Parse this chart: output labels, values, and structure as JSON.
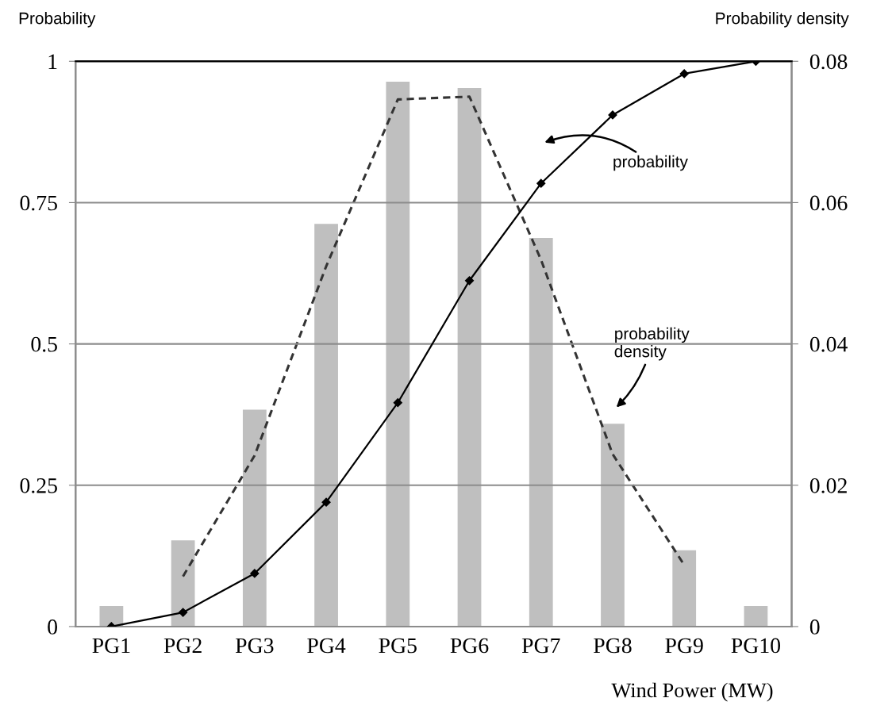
{
  "chart_data": {
    "type": "bar",
    "ylabel": "Probability",
    "y2label": "Probability density",
    "xlabel": "Wind Power (MW)",
    "categories": [
      "PG1",
      "PG2",
      "PG3",
      "PG4",
      "PG5",
      "PG6",
      "PG7",
      "PG8",
      "PG9",
      "PG10"
    ],
    "series": [
      {
        "axis": "y2",
        "color": "#bfbfbf",
        "values": [
          0.0029,
          0.0122,
          0.0307,
          0.057,
          0.0771,
          0.0762,
          0.055,
          0.0287,
          0.0108,
          0.0029
        ]
      },
      {
        "type": "line",
        "axis": "y2",
        "color": "#333333",
        "line_style": "dashed",
        "marker": "none",
        "values": [
          null,
          0.0071,
          0.0242,
          0.051,
          0.0746,
          0.075,
          0.0519,
          0.0244,
          0.0087,
          null
        ]
      },
      {
        "type": "line",
        "color": "#000000",
        "marker": "diamond",
        "line_style": "solid",
        "values": [
          0,
          0.025,
          0.094,
          0.22,
          0.396,
          0.612,
          0.784,
          0.905,
          0.978,
          1.0
        ]
      }
    ],
    "ylim": [
      0,
      1
    ],
    "yticks": [
      0,
      0.25,
      0.5,
      0.75,
      1
    ],
    "y2lim": [
      0,
      0.08
    ],
    "y2ticks": [
      0,
      0.02,
      0.04,
      0.06,
      0.08
    ],
    "grid": "y",
    "legend": false,
    "annotations": [
      "probability",
      "probability\ndensity"
    ]
  }
}
